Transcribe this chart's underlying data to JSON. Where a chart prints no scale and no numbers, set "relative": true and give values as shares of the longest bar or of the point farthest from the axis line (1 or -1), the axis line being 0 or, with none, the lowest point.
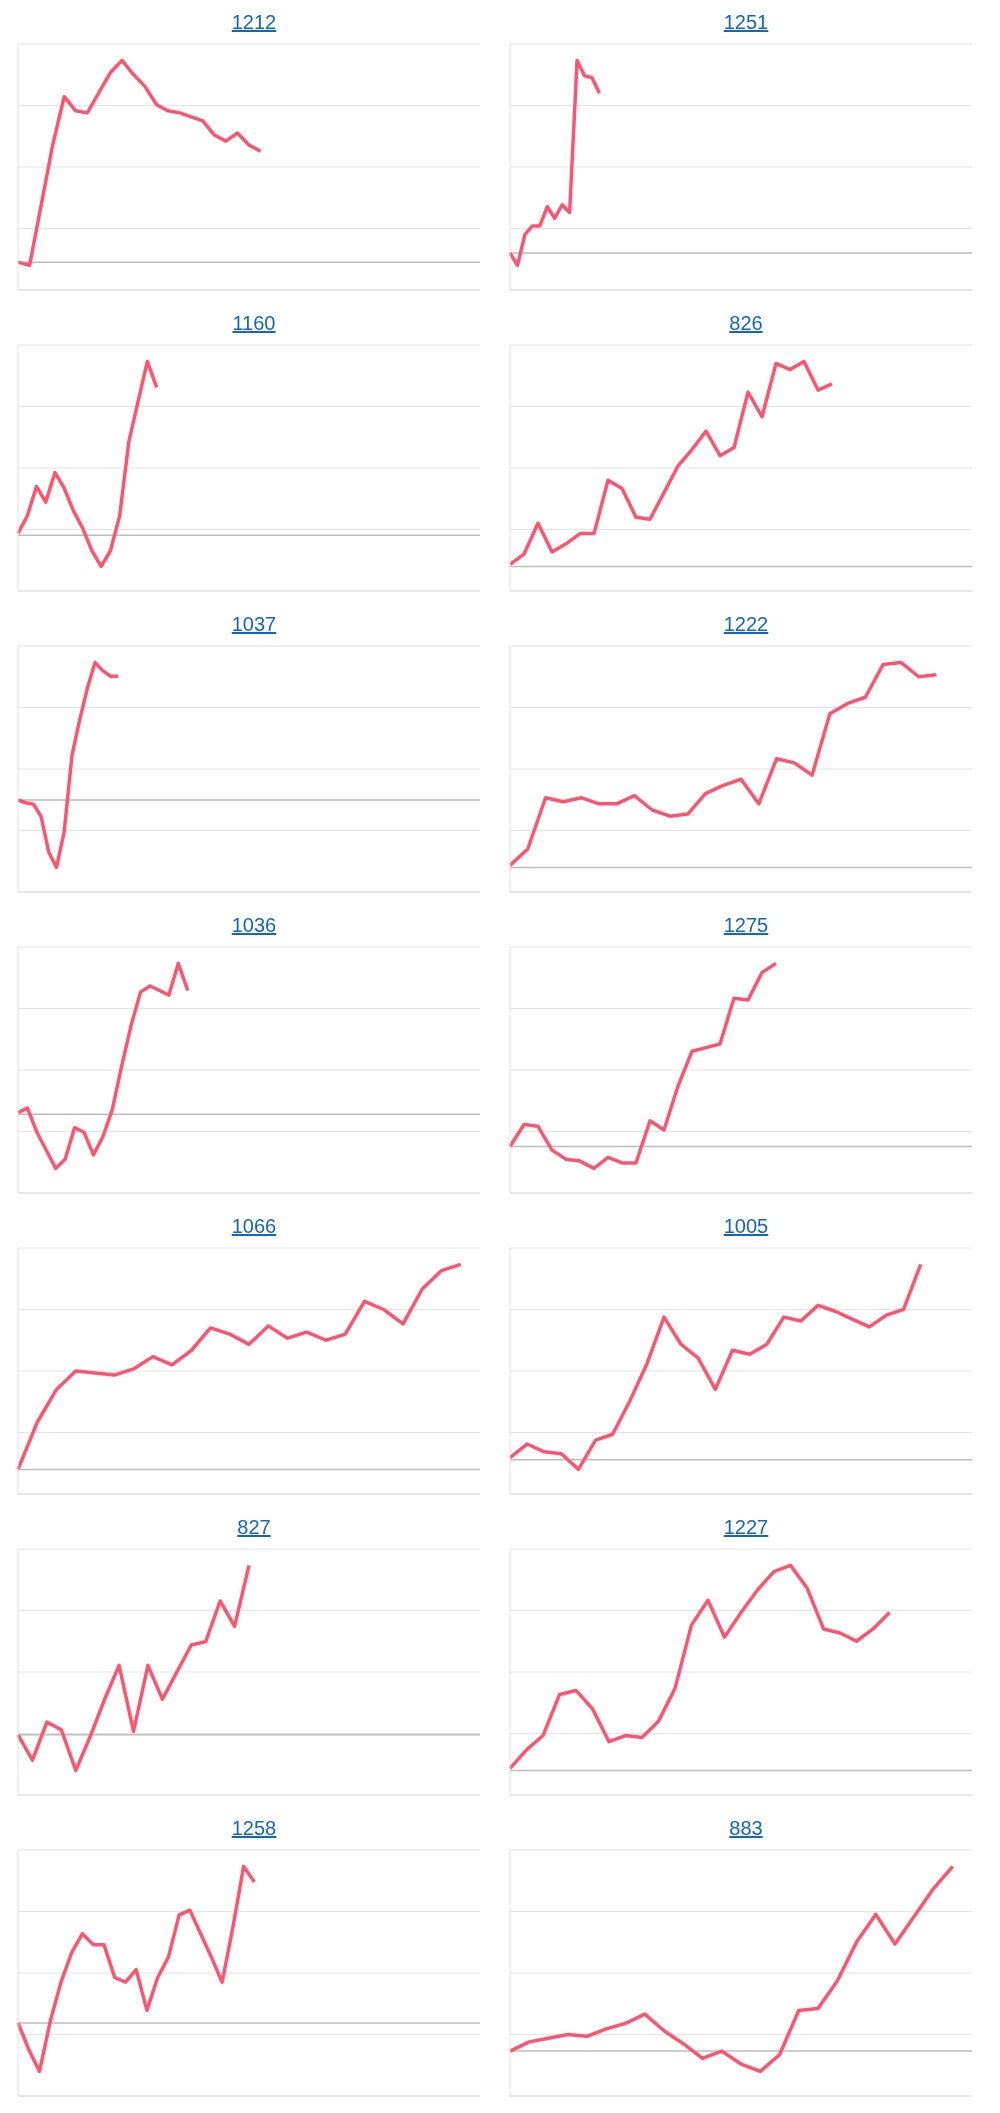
{
  "chart_data": [
    {
      "type": "line",
      "title": "1212",
      "relative": true,
      "grid": "y",
      "color": "#ff5470",
      "categories": [
        null,
        null,
        null,
        null,
        null,
        null,
        null,
        null,
        null,
        null,
        null,
        null,
        null,
        null,
        null,
        null,
        null,
        null,
        null,
        null,
        null,
        null,
        null,
        null,
        null,
        null,
        null,
        null,
        null,
        null,
        null,
        null,
        null,
        null,
        null,
        null,
        null,
        null,
        null,
        null,
        null
      ],
      "values": [
        0,
        -0.016,
        0.28,
        0.58,
        0.82,
        0.75,
        0.74,
        0.84,
        0.94,
        1,
        0.93,
        0.87,
        0.78,
        0.75,
        0.74,
        0.72,
        0.7,
        0.63,
        0.6,
        0.64,
        0.58,
        0.55,
        null,
        null,
        null,
        null,
        null,
        null,
        null,
        null,
        null,
        null,
        null,
        null,
        null,
        null,
        null,
        null,
        null,
        null,
        null
      ]
    },
    {
      "type": "line",
      "title": "1251",
      "relative": true,
      "grid": "y",
      "color": "#ff5470",
      "categories": [
        null,
        null,
        null,
        null,
        null,
        null,
        null,
        null,
        null,
        null,
        null,
        null,
        null,
        null,
        null,
        null,
        null,
        null,
        null,
        null,
        null,
        null,
        null,
        null,
        null,
        null,
        null,
        null,
        null,
        null,
        null,
        null,
        null,
        null,
        null,
        null,
        null,
        null,
        null,
        null,
        null,
        null,
        null,
        null,
        null,
        null,
        null,
        null,
        null,
        null,
        null,
        null,
        null,
        null,
        null,
        null,
        null,
        null,
        null,
        null,
        null,
        null,
        null
      ],
      "values": [
        0,
        -0.065,
        0.095,
        0.14,
        0.14,
        0.24,
        0.18,
        0.25,
        0.21,
        1,
        0.92,
        0.91,
        0.83,
        null,
        null,
        null,
        null,
        null,
        null,
        null,
        null,
        null,
        null,
        null,
        null,
        null,
        null,
        null,
        null,
        null,
        null,
        null,
        null,
        null,
        null,
        null,
        null,
        null,
        null,
        null,
        null,
        null,
        null,
        null,
        null,
        null,
        null,
        null,
        null,
        null,
        null,
        null,
        null,
        null,
        null,
        null,
        null,
        null,
        null,
        null,
        null,
        null,
        null
      ]
    },
    {
      "type": "line",
      "title": "1160",
      "relative": true,
      "grid": "y",
      "color": "#ff5470",
      "categories": [
        null,
        null,
        null,
        null,
        null,
        null,
        null,
        null,
        null,
        null,
        null,
        null,
        null,
        null,
        null,
        null,
        null,
        null,
        null,
        null,
        null,
        null,
        null,
        null,
        null,
        null,
        null,
        null,
        null,
        null,
        null,
        null,
        null,
        null,
        null,
        null,
        null,
        null,
        null,
        null,
        null,
        null,
        null,
        null,
        null,
        null,
        null,
        null,
        null,
        null,
        null
      ],
      "values": [
        0.01,
        0.11,
        0.28,
        0.19,
        0.36,
        0.27,
        0.14,
        0.04,
        -0.09,
        -0.18,
        -0.09,
        0.11,
        0.54,
        0.77,
        1,
        0.85,
        null,
        null,
        null,
        null,
        null,
        null,
        null,
        null,
        null,
        null,
        null,
        null,
        null,
        null,
        null,
        null,
        null,
        null,
        null,
        null,
        null,
        null,
        null,
        null,
        null,
        null,
        null,
        null,
        null,
        null,
        null,
        null,
        null,
        null,
        null
      ]
    },
    {
      "type": "line",
      "title": "826",
      "relative": true,
      "grid": "y",
      "color": "#ff5470",
      "categories": [
        null,
        null,
        null,
        null,
        null,
        null,
        null,
        null,
        null,
        null,
        null,
        null,
        null,
        null,
        null,
        null,
        null,
        null,
        null,
        null,
        null,
        null,
        null,
        null,
        null,
        null,
        null,
        null,
        null,
        null,
        null,
        null,
        null,
        null
      ],
      "values": [
        0.01,
        0.06,
        0.21,
        0.07,
        0.11,
        0.16,
        0.16,
        0.42,
        0.38,
        0.24,
        0.23,
        0.36,
        0.49,
        0.57,
        0.66,
        0.54,
        0.58,
        0.85,
        0.73,
        0.99,
        0.96,
        1,
        0.86,
        0.89,
        null,
        null,
        null,
        null,
        null,
        null,
        null,
        null,
        null,
        null
      ]
    },
    {
      "type": "line",
      "title": "1037",
      "relative": true,
      "grid": "y",
      "color": "#ff5470",
      "categories": [
        null,
        null,
        null,
        null,
        null,
        null,
        null,
        null,
        null,
        null,
        null,
        null,
        null,
        null,
        null,
        null,
        null,
        null,
        null,
        null,
        null,
        null,
        null,
        null,
        null,
        null,
        null,
        null,
        null,
        null,
        null,
        null,
        null,
        null,
        null,
        null,
        null,
        null,
        null,
        null,
        null,
        null,
        null,
        null,
        null,
        null,
        null,
        null,
        null,
        null,
        null,
        null,
        null,
        null,
        null,
        null,
        null,
        null,
        null,
        null,
        null
      ],
      "values": [
        0,
        -0.02,
        -0.03,
        -0.12,
        -0.38,
        -0.49,
        -0.23,
        0.32,
        0.58,
        0.81,
        1,
        0.94,
        0.9,
        0.9,
        null,
        null,
        null,
        null,
        null,
        null,
        null,
        null,
        null,
        null,
        null,
        null,
        null,
        null,
        null,
        null,
        null,
        null,
        null,
        null,
        null,
        null,
        null,
        null,
        null,
        null,
        null,
        null,
        null,
        null,
        null,
        null,
        null,
        null,
        null,
        null,
        null,
        null,
        null,
        null,
        null,
        null,
        null,
        null,
        null,
        null,
        null
      ]
    },
    {
      "type": "line",
      "title": "1222",
      "relative": true,
      "grid": "y",
      "color": "#ff5470",
      "categories": [
        null,
        null,
        null,
        null,
        null,
        null,
        null,
        null,
        null,
        null,
        null,
        null,
        null,
        null,
        null,
        null,
        null,
        null,
        null,
        null,
        null,
        null,
        null,
        null,
        null,
        null,
        null
      ],
      "values": [
        0.01,
        0.09,
        0.34,
        0.32,
        0.34,
        0.31,
        0.31,
        0.35,
        0.28,
        0.25,
        0.26,
        0.36,
        0.4,
        0.43,
        0.31,
        0.53,
        0.51,
        0.45,
        0.75,
        0.8,
        0.83,
        0.99,
        1,
        0.93,
        0.94,
        null,
        null
      ]
    },
    {
      "type": "line",
      "title": "1036",
      "relative": true,
      "grid": "y",
      "color": "#ff5470",
      "categories": [
        null,
        null,
        null,
        null,
        null,
        null,
        null,
        null,
        null,
        null,
        null,
        null,
        null,
        null,
        null,
        null,
        null,
        null,
        null,
        null,
        null,
        null,
        null,
        null,
        null,
        null,
        null,
        null,
        null,
        null,
        null,
        null,
        null,
        null,
        null,
        null,
        null,
        null,
        null,
        null,
        null,
        null,
        null,
        null,
        null,
        null,
        null,
        null,
        null,
        null
      ],
      "values": [
        0.01,
        0.04,
        -0.12,
        -0.24,
        -0.36,
        -0.3,
        -0.09,
        -0.12,
        -0.27,
        -0.15,
        0.03,
        0.32,
        0.59,
        0.81,
        0.85,
        0.82,
        0.79,
        1,
        0.82,
        null,
        null,
        null,
        null,
        null,
        null,
        null,
        null,
        null,
        null,
        null,
        null,
        null,
        null,
        null,
        null,
        null,
        null,
        null,
        null,
        null,
        null,
        null,
        null,
        null,
        null,
        null,
        null,
        null,
        null,
        null
      ]
    },
    {
      "type": "line",
      "title": "1275",
      "relative": true,
      "grid": "y",
      "color": "#ff5470",
      "categories": [
        null,
        null,
        null,
        null,
        null,
        null,
        null,
        null,
        null,
        null,
        null,
        null,
        null,
        null,
        null,
        null,
        null,
        null,
        null,
        null,
        null,
        null,
        null,
        null,
        null,
        null,
        null,
        null,
        null,
        null,
        null,
        null,
        null,
        null
      ],
      "values": [
        0,
        0.12,
        0.11,
        -0.02,
        -0.07,
        -0.08,
        -0.12,
        -0.06,
        -0.09,
        -0.09,
        0.14,
        0.09,
        0.33,
        0.52,
        0.54,
        0.56,
        0.81,
        0.8,
        0.95,
        1,
        null,
        null,
        null,
        null,
        null,
        null,
        null,
        null,
        null,
        null,
        null,
        null,
        null,
        null
      ]
    },
    {
      "type": "line",
      "title": "1066",
      "relative": true,
      "grid": "y",
      "color": "#ff5470",
      "categories": [
        null,
        null,
        null,
        null,
        null,
        null,
        null,
        null,
        null,
        null,
        null,
        null,
        null,
        null,
        null,
        null,
        null,
        null,
        null,
        null,
        null,
        null,
        null,
        null,
        null
      ],
      "values": [
        0,
        0.23,
        0.39,
        0.48,
        0.47,
        0.46,
        0.49,
        0.55,
        0.51,
        0.58,
        0.69,
        0.66,
        0.61,
        0.7,
        0.64,
        0.67,
        0.63,
        0.66,
        0.82,
        0.78,
        0.71,
        0.88,
        0.97,
        1,
        null
      ]
    },
    {
      "type": "line",
      "title": "1005",
      "relative": true,
      "grid": "y",
      "color": "#ff5470",
      "categories": [
        null,
        null,
        null,
        null,
        null,
        null,
        null,
        null,
        null,
        null,
        null,
        null,
        null,
        null,
        null,
        null,
        null,
        null,
        null,
        null,
        null,
        null,
        null,
        null,
        null,
        null,
        null,
        null
      ],
      "values": [
        0.01,
        0.08,
        0.04,
        0.03,
        -0.05,
        0.1,
        0.13,
        0.3,
        0.49,
        0.73,
        0.59,
        0.52,
        0.36,
        0.56,
        0.54,
        0.59,
        0.73,
        0.71,
        0.79,
        0.76,
        0.72,
        0.68,
        0.74,
        0.77,
        1,
        null,
        null,
        null
      ]
    },
    {
      "type": "line",
      "title": "827",
      "relative": true,
      "grid": "y",
      "color": "#ff5470",
      "categories": [
        null,
        null,
        null,
        null,
        null,
        null,
        null,
        null,
        null,
        null,
        null,
        null,
        null,
        null,
        null,
        null,
        null,
        null,
        null,
        null,
        null,
        null,
        null,
        null,
        null,
        null,
        null,
        null,
        null,
        null,
        null,
        null,
        null
      ],
      "values": [
        0,
        -0.15,
        0.075,
        0.03,
        -0.21,
        -0.01,
        0.21,
        0.41,
        0.02,
        0.41,
        0.21,
        0.37,
        0.53,
        0.55,
        0.79,
        0.64,
        1,
        null,
        null,
        null,
        null,
        null,
        null,
        null,
        null,
        null,
        null,
        null,
        null,
        null,
        null,
        null,
        null
      ]
    },
    {
      "type": "line",
      "title": "1227",
      "relative": true,
      "grid": "y",
      "color": "#ff5470",
      "categories": [
        null,
        null,
        null,
        null,
        null,
        null,
        null,
        null,
        null,
        null,
        null,
        null,
        null,
        null,
        null,
        null,
        null,
        null,
        null,
        null,
        null,
        null,
        null,
        null,
        null,
        null,
        null,
        null,
        null
      ],
      "values": [
        0.01,
        0.1,
        0.17,
        0.37,
        0.39,
        0.3,
        0.14,
        0.17,
        0.16,
        0.24,
        0.4,
        0.71,
        0.83,
        0.65,
        0.77,
        0.88,
        0.97,
        1,
        0.89,
        0.69,
        0.67,
        0.63,
        0.69,
        0.77,
        null,
        null,
        null,
        null,
        null
      ]
    },
    {
      "type": "line",
      "title": "1258",
      "relative": true,
      "grid": "y",
      "color": "#ff5470",
      "categories": [
        null,
        null,
        null,
        null,
        null,
        null,
        null,
        null,
        null,
        null,
        null,
        null,
        null,
        null,
        null,
        null,
        null,
        null,
        null,
        null,
        null,
        null,
        null,
        null,
        null,
        null,
        null,
        null,
        null,
        null,
        null,
        null,
        null,
        null,
        null,
        null,
        null,
        null,
        null,
        null,
        null,
        null,
        null,
        null
      ],
      "values": [
        0,
        -0.17,
        -0.31,
        0.01,
        0.26,
        0.45,
        0.57,
        0.5,
        0.5,
        0.29,
        0.26,
        0.34,
        0.08,
        0.29,
        0.42,
        0.69,
        0.72,
        0.57,
        0.42,
        0.26,
        0.61,
        1,
        0.9,
        null,
        null,
        null,
        null,
        null,
        null,
        null,
        null,
        null,
        null,
        null,
        null,
        null,
        null,
        null,
        null,
        null,
        null,
        null,
        null,
        null
      ]
    },
    {
      "type": "line",
      "title": "883",
      "relative": true,
      "grid": "y",
      "color": "#ff5470",
      "categories": [
        null,
        null,
        null,
        null,
        null,
        null,
        null,
        null,
        null,
        null,
        null,
        null,
        null,
        null,
        null,
        null,
        null,
        null,
        null,
        null,
        null,
        null,
        null,
        null,
        null
      ],
      "values": [
        0,
        0.05,
        0.07,
        0.09,
        0.08,
        0.12,
        0.15,
        0.2,
        0.11,
        0.04,
        -0.04,
        0,
        -0.07,
        -0.11,
        -0.02,
        0.22,
        0.23,
        0.38,
        0.59,
        0.74,
        0.58,
        0.73,
        0.88,
        1,
        null
      ]
    }
  ]
}
